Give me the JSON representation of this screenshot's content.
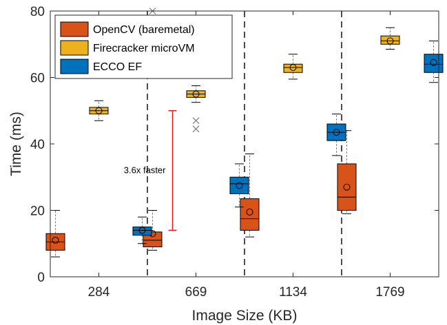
{
  "chart_data": {
    "type": "box",
    "xlabel": "Image Size (KB)",
    "ylabel": "Time (ms)",
    "ylim": [
      0,
      80
    ],
    "yticks": [
      0,
      20,
      40,
      60,
      80
    ],
    "categories": [
      "284",
      "669",
      "1134",
      "1769"
    ],
    "legend_position": "top-left",
    "series": [
      {
        "name": "OpenCV (baremetal)",
        "color": "#D95319",
        "boxes": [
          {
            "whisker_low": 6,
            "q1": 8,
            "median": 10.5,
            "q3": 13,
            "whisker_high": 20,
            "mean": 11,
            "outliers": []
          },
          {
            "whisker_low": 8,
            "q1": 9,
            "median": 11,
            "q3": 13.5,
            "whisker_high": 20,
            "mean": 13,
            "outliers": [
              80
            ]
          },
          {
            "whisker_low": 12,
            "q1": 14,
            "median": 17.5,
            "q3": 23.5,
            "whisker_high": 37,
            "mean": 19.5,
            "outliers": []
          },
          {
            "whisker_low": 19,
            "q1": 20,
            "median": 24,
            "q3": 34,
            "whisker_high": 44,
            "mean": 27,
            "outliers": []
          }
        ]
      },
      {
        "name": "Firecracker microVM",
        "color": "#EDB120",
        "boxes": [
          {
            "whisker_low": 47,
            "q1": 49,
            "median": 50,
            "q3": 51,
            "whisker_high": 53,
            "mean": 50,
            "outliers": []
          },
          {
            "whisker_low": 52.5,
            "q1": 54,
            "median": 55,
            "q3": 56,
            "whisker_high": 57.5,
            "mean": 55,
            "outliers": [
              47,
              44.5
            ]
          },
          {
            "whisker_low": 59.5,
            "q1": 61.5,
            "median": 63,
            "q3": 64,
            "whisker_high": 67,
            "mean": 63,
            "outliers": []
          },
          {
            "whisker_low": 68.5,
            "q1": 70,
            "median": 71,
            "q3": 72.5,
            "whisker_high": 75,
            "mean": 71,
            "outliers": []
          }
        ]
      },
      {
        "name": "ECCO EF",
        "color": "#0072BD",
        "boxes": [
          {
            "whisker_low": 10,
            "q1": 12.5,
            "median": 14,
            "q3": 15,
            "whisker_high": 18,
            "mean": 14,
            "outliers": []
          },
          {
            "whisker_low": 21,
            "q1": 25,
            "median": 28,
            "q3": 30,
            "whisker_high": 34,
            "mean": 27.5,
            "outliers": []
          },
          {
            "whisker_low": 36.5,
            "q1": 41,
            "median": 43.5,
            "q3": 46,
            "whisker_high": 49,
            "mean": 43.5,
            "outliers": []
          },
          {
            "whisker_low": 58.5,
            "q1": 61.5,
            "median": 64,
            "q3": 67,
            "whisker_high": 71,
            "mean": 64.5,
            "outliers": []
          }
        ]
      }
    ],
    "annotations": [
      {
        "text": "3.6x faster",
        "category_index": 0,
        "y_from": 14,
        "y_to": 50,
        "color": "#E41A1C"
      }
    ]
  }
}
